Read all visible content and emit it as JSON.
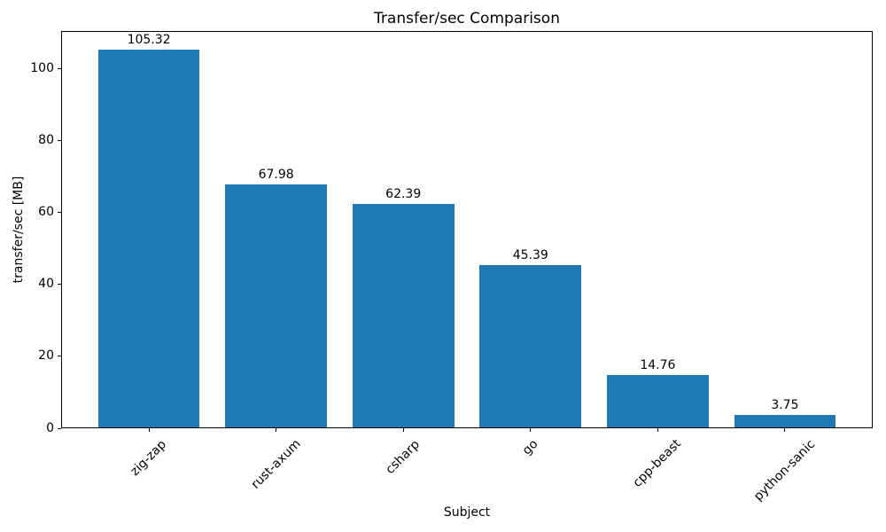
{
  "chart_data": {
    "type": "bar",
    "title": "Transfer/sec Comparison",
    "xlabel": "Subject",
    "ylabel": "transfer/sec [MB]",
    "categories": [
      "zig-zap",
      "rust-axum",
      "csharp",
      "go",
      "cpp-beast",
      "python-sanic"
    ],
    "values": [
      105.32,
      67.98,
      62.39,
      45.39,
      14.76,
      3.75
    ],
    "value_labels": [
      "105.32",
      "67.98",
      "62.39",
      "45.39",
      "14.76",
      "3.75"
    ],
    "yticks": [
      0,
      20,
      40,
      60,
      80,
      100
    ],
    "ylim": [
      0,
      110.6
    ],
    "bar_color": "#1f77b4",
    "grid": false,
    "legend": "none",
    "xtick_rotation": 45
  }
}
